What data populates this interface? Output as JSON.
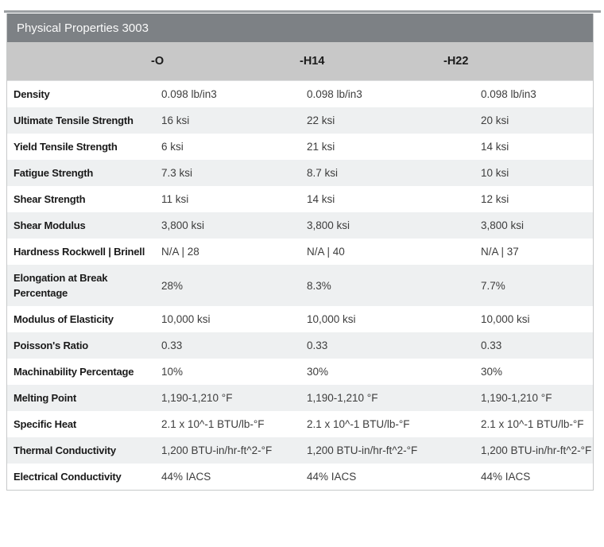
{
  "table": {
    "title": "Physical Properties 3003",
    "columns": [
      "-O",
      "-H14",
      "-H22"
    ],
    "rows": [
      {
        "label": "Density",
        "values": [
          "0.098 lb/in3",
          "0.098 lb/in3",
          "0.098 lb/in3"
        ]
      },
      {
        "label": "Ultimate Tensile Strength",
        "values": [
          "16 ksi",
          "22 ksi",
          "20 ksi"
        ]
      },
      {
        "label": "Yield Tensile Strength",
        "values": [
          "6 ksi",
          "21 ksi",
          "14 ksi"
        ]
      },
      {
        "label": "Fatigue Strength",
        "values": [
          "7.3 ksi",
          "8.7 ksi",
          "10 ksi"
        ]
      },
      {
        "label": "Shear Strength",
        "values": [
          "11 ksi",
          "14 ksi",
          "12 ksi"
        ]
      },
      {
        "label": "Shear Modulus",
        "values": [
          "3,800 ksi",
          "3,800 ksi",
          "3,800 ksi"
        ]
      },
      {
        "label": "Hardness Rockwell | Brinell",
        "values": [
          "N/A | 28",
          "N/A | 40",
          "N/A | 37"
        ]
      },
      {
        "label": "Elongation at Break Percentage",
        "values": [
          "28%",
          "8.3%",
          "7.7%"
        ]
      },
      {
        "label": "Modulus of Elasticity",
        "values": [
          "10,000 ksi",
          "10,000 ksi",
          "10,000 ksi"
        ]
      },
      {
        "label": "Poisson's Ratio",
        "values": [
          "0.33",
          "0.33",
          "0.33"
        ]
      },
      {
        "label": "Machinability Percentage",
        "values": [
          "10%",
          "30%",
          "30%"
        ]
      },
      {
        "label": "Melting Point",
        "values": [
          "1,190-1,210 °F",
          "1,190-1,210 °F",
          "1,190-1,210 °F"
        ]
      },
      {
        "label": "Specific Heat",
        "values": [
          "2.1 x 10^-1 BTU/lb-°F",
          "2.1 x 10^-1 BTU/lb-°F",
          "2.1 x 10^-1 BTU/lb-°F"
        ]
      },
      {
        "label": "Thermal Conductivity",
        "values": [
          "1,200 BTU-in/hr-ft^2-°F",
          "1,200 BTU-in/hr-ft^2-°F",
          "1,200 BTU-in/hr-ft^2-°F"
        ]
      },
      {
        "label": "Electrical Conductivity",
        "values": [
          "44% IACS",
          "44% IACS",
          "44% IACS"
        ]
      }
    ]
  },
  "colors": {
    "title_bar": "#7d8185",
    "header_bg": "#c8c8c8",
    "alt_row": "#eef0f1",
    "top_strip": "#9ca0a3",
    "border": "#c7c9ca"
  }
}
